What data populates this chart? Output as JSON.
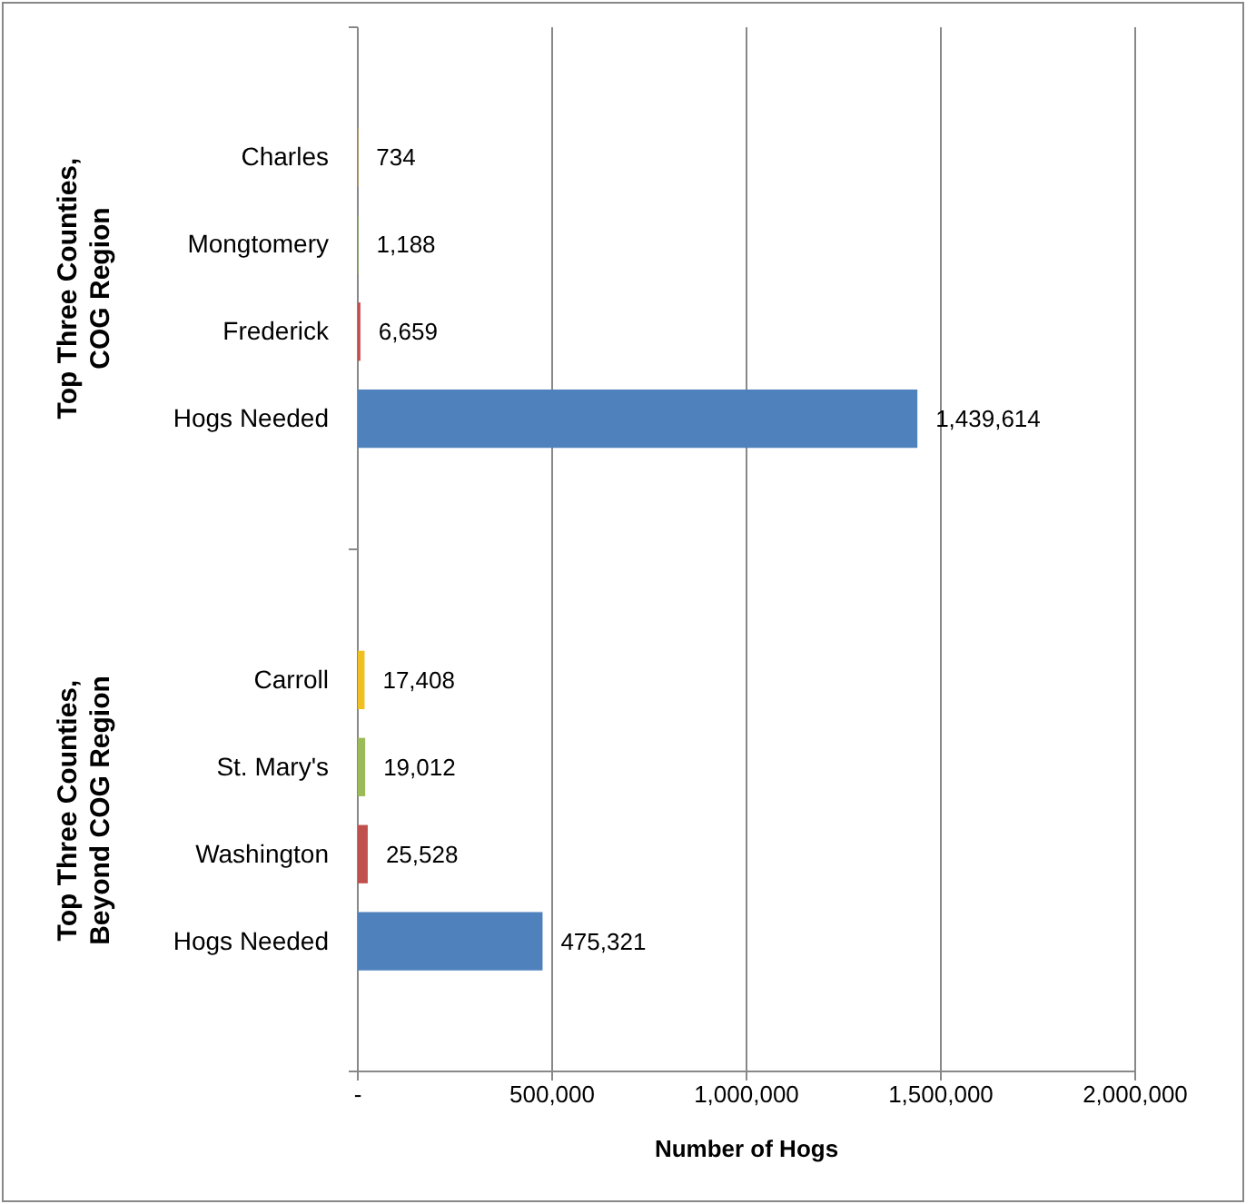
{
  "chart_data": {
    "type": "bar",
    "orientation": "horizontal",
    "xlabel": "Number of Hogs",
    "categories": [
      null,
      "Charles",
      "Mongtomery",
      "Frederick",
      "Hogs Needed",
      null,
      null,
      "Carroll",
      "St. Mary's",
      "Washington",
      "Hogs Needed",
      null
    ],
    "values": [
      null,
      734,
      1188,
      6659,
      1439614,
      null,
      null,
      17408,
      19012,
      25528,
      475321,
      null
    ],
    "colors": [
      null,
      "#f0c020",
      "#9bbb59",
      "#c0504d",
      "#4f81bd",
      null,
      null,
      "#f0c020",
      "#9bbb59",
      "#c0504d",
      "#4f81bd",
      null
    ],
    "value_labels": [
      null,
      "734",
      "1,188",
      "6,659",
      "1,439,614",
      null,
      null,
      "17,408",
      "19,012",
      "25,528",
      "475,321",
      null
    ],
    "xlim": [
      0,
      2000000
    ],
    "xticks": [
      {
        "value": 0,
        "label": "-"
      },
      {
        "value": 500000,
        "label": "500,000"
      },
      {
        "value": 1000000,
        "label": "1,000,000"
      },
      {
        "value": 1500000,
        "label": "1,500,000"
      },
      {
        "value": 2000000,
        "label": "2,000,000"
      }
    ],
    "grid": "x",
    "annotations": [
      "Top Three Counties, COG Region",
      "Top Three Counties, Beyond COG Region"
    ]
  }
}
